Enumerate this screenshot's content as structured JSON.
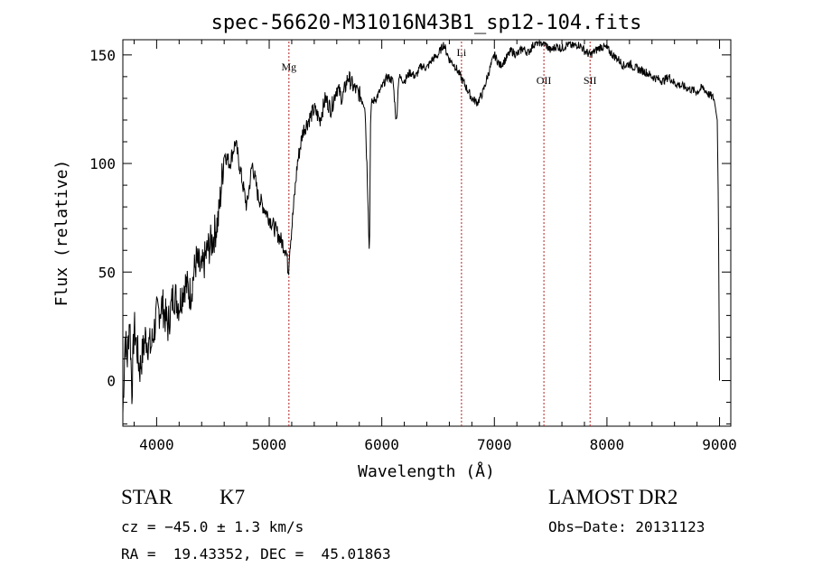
{
  "chart_data": {
    "type": "line",
    "title": "spec-56620-M31016N43B1_sp12-104.fits",
    "xlabel": "Wavelength (Å)",
    "ylabel": "Flux (relative)",
    "xlim": [
      3700,
      9100
    ],
    "ylim": [
      -21,
      157
    ],
    "x_ticks": [
      4000,
      5000,
      6000,
      7000,
      8000,
      9000
    ],
    "x_tick_labels": [
      "4000",
      "5000",
      "6000",
      "7000",
      "8000",
      "9000"
    ],
    "y_ticks": [
      0,
      50,
      100,
      150
    ],
    "y_tick_labels": [
      "0",
      "50",
      "100",
      "150"
    ],
    "line_color": "#000000",
    "marker_color": "#b22222",
    "series": [
      {
        "name": "spectrum",
        "x": [
          3700,
          3720,
          3740,
          3760,
          3780,
          3800,
          3850,
          3900,
          3950,
          4000,
          4050,
          4100,
          4150,
          4200,
          4250,
          4300,
          4350,
          4400,
          4450,
          4500,
          4550,
          4600,
          4650,
          4700,
          4750,
          4800,
          4850,
          4900,
          4950,
          5000,
          5050,
          5100,
          5150,
          5170,
          5180,
          5200,
          5250,
          5300,
          5350,
          5400,
          5450,
          5500,
          5550,
          5600,
          5650,
          5700,
          5750,
          5800,
          5850,
          5880,
          5890,
          5900,
          5910,
          5950,
          6000,
          6050,
          6100,
          6130,
          6150,
          6200,
          6250,
          6300,
          6350,
          6400,
          6450,
          6500,
          6550,
          6600,
          6650,
          6700,
          6750,
          6800,
          6850,
          6900,
          6950,
          7000,
          7050,
          7100,
          7150,
          7200,
          7250,
          7300,
          7350,
          7400,
          7450,
          7500,
          7550,
          7600,
          7650,
          7700,
          7750,
          7800,
          7850,
          7900,
          7950,
          8000,
          8050,
          8100,
          8150,
          8200,
          8250,
          8300,
          8350,
          8400,
          8450,
          8500,
          8550,
          8600,
          8650,
          8700,
          8750,
          8800,
          8850,
          8900,
          8950,
          8980,
          8990,
          9000
        ],
        "y": [
          -15,
          20,
          10,
          30,
          -5,
          25,
          5,
          20,
          15,
          30,
          35,
          25,
          40,
          35,
          45,
          40,
          55,
          50,
          60,
          65,
          75,
          105,
          100,
          110,
          95,
          80,
          100,
          85,
          80,
          75,
          70,
          65,
          60,
          50,
          60,
          70,
          100,
          115,
          120,
          125,
          120,
          130,
          125,
          135,
          130,
          140,
          135,
          132,
          128,
          80,
          55,
          120,
          128,
          130,
          135,
          140,
          138,
          118,
          140,
          138,
          142,
          140,
          145,
          144,
          148,
          150,
          155,
          148,
          145,
          140,
          135,
          130,
          128,
          133,
          142,
          150,
          145,
          148,
          152,
          150,
          153,
          151,
          155,
          156,
          155,
          152,
          154,
          153,
          155,
          154,
          155,
          152,
          150,
          152,
          154,
          153,
          150,
          148,
          145,
          146,
          144,
          143,
          142,
          140,
          139,
          138,
          140,
          137,
          136,
          135,
          134,
          133,
          135,
          132,
          130,
          120,
          80,
          0
        ]
      }
    ],
    "line_markers": [
      {
        "label": "Mg",
        "x": 5175
      },
      {
        "label": "Li",
        "x": 6708
      },
      {
        "label": "OII",
        "x": 7440
      },
      {
        "label": "SII",
        "x": 7850
      }
    ]
  },
  "info": {
    "object_class": "STAR",
    "subclass": "K7",
    "survey": "LAMOST DR2",
    "cz": "cz = −45.0 ± 1.3 km/s",
    "obs_date": "Obs−Date: 20131123",
    "coords": "RA =  19.43352, DEC =  45.01863"
  }
}
